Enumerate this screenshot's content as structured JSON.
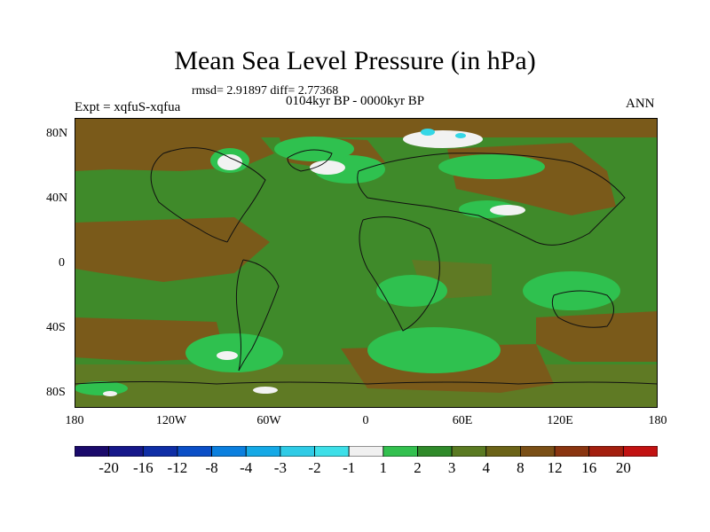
{
  "title": "Mean Sea Level Pressure (in hPa)",
  "stats": "rmsd= 2.91897 diff= 2.77368",
  "period": "0104kyr BP - 0000kyr BP",
  "experiment": "Expt = xqfuS-xqfua",
  "season": "ANN",
  "lat_labels": [
    "80N",
    "40N",
    "0",
    "40S",
    "80S"
  ],
  "lon_labels": [
    "180",
    "120W",
    "60W",
    "0",
    "60E",
    "120E",
    "180"
  ],
  "palette": {
    "background": "#3f8a2a",
    "brown": "#7a5a1a",
    "olive": "#5f7a24",
    "light_green": "#2fc14f",
    "white": "#f2f2f2",
    "cyan": "#35d7e6",
    "coast": "#111111"
  },
  "colorbar": {
    "labels": [
      "-20",
      "-16",
      "-12",
      "-8",
      "-4",
      "-3",
      "-2",
      "-1",
      "1",
      "2",
      "3",
      "4",
      "8",
      "12",
      "16",
      "20"
    ],
    "colors": [
      "#1a0a6b",
      "#16188a",
      "#0f2ea6",
      "#0b4fc7",
      "#0b7fde",
      "#15a9e6",
      "#2fcbe6",
      "#3ddfe8",
      "#f0f0f0",
      "#33c04f",
      "#2f8a2a",
      "#5a7a22",
      "#6b6318",
      "#7a4f16",
      "#8a3510",
      "#a31f0e",
      "#c21212"
    ]
  }
}
